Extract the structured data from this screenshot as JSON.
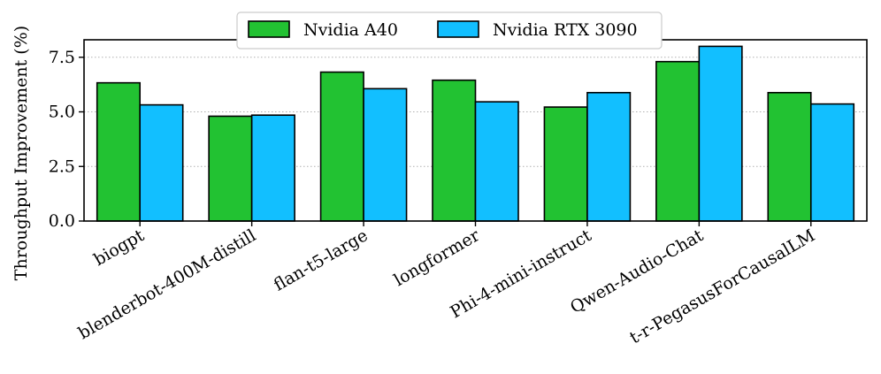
{
  "chart_data": {
    "type": "bar",
    "title": "",
    "xlabel": "",
    "ylabel": "Throughput Improvement (%)",
    "ylim": [
      0,
      8.3
    ],
    "yticks": [
      0.0,
      2.5,
      5.0,
      7.5
    ],
    "ytick_labels": [
      "0.0",
      "2.5",
      "5.0",
      "7.5"
    ],
    "grid": "horizontal dotted",
    "legend_position": "top-center",
    "categories": [
      "biogpt",
      "blenderbot-400M-distill",
      "flan-t5-large",
      "longformer",
      "Phi-4-mini-instruct",
      "Qwen-Audio-Chat",
      "t-r-PegasusForCausalLM"
    ],
    "series": [
      {
        "name": "Nvidia A40",
        "color": "#22c232",
        "values": [
          6.33,
          4.8,
          6.82,
          6.45,
          5.22,
          7.3,
          5.88
        ]
      },
      {
        "name": "Nvidia RTX 3090",
        "color": "#12bfff",
        "values": [
          5.32,
          4.85,
          6.06,
          5.46,
          5.88,
          8.0,
          5.36
        ]
      }
    ]
  }
}
